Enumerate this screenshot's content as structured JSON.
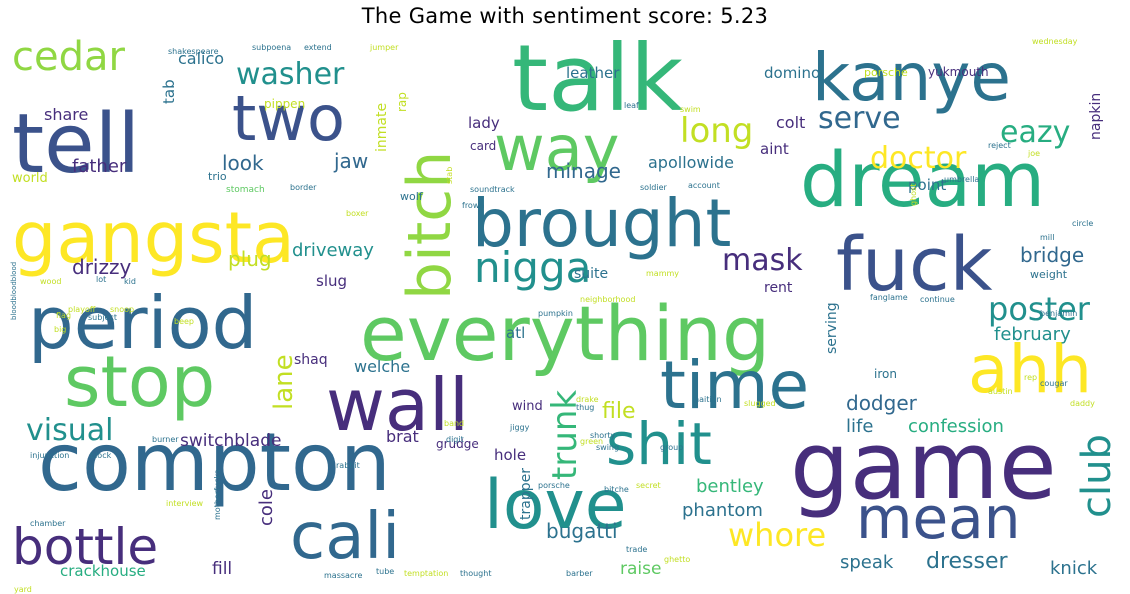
{
  "title": "The Game with sentiment score: 5.23",
  "colors": {
    "dark_purple": "#472e7c",
    "deep_purple": "#46327e",
    "indigo": "#3b528b",
    "blue": "#31688e",
    "teal_blue": "#2c728e",
    "teal": "#21908d",
    "sea_green": "#27ad81",
    "green": "#35b779",
    "light_green": "#5ec962",
    "lime": "#90d743",
    "yellow_green": "#c2df23",
    "yellow": "#fde725"
  },
  "words": [
    {
      "text": "talk",
      "color": "#35b779"
    },
    {
      "text": "kanye",
      "color": "#2c728e"
    },
    {
      "text": "tell",
      "color": "#3b528b"
    },
    {
      "text": "two",
      "color": "#3b528b"
    },
    {
      "text": "way",
      "color": "#5ec962"
    },
    {
      "text": "dream",
      "color": "#27ad81"
    },
    {
      "text": "gangsta",
      "color": "#fde725"
    },
    {
      "text": "bitch",
      "color": "#90d743"
    },
    {
      "text": "brought",
      "color": "#2c728e"
    },
    {
      "text": "fuck",
      "color": "#3b528b"
    },
    {
      "text": "period",
      "color": "#31688e"
    },
    {
      "text": "everything",
      "color": "#5ec962"
    },
    {
      "text": "stop",
      "color": "#5ec962"
    },
    {
      "text": "wall",
      "color": "#472e7c"
    },
    {
      "text": "time",
      "color": "#2c728e"
    },
    {
      "text": "ahh",
      "color": "#fde725"
    },
    {
      "text": "compton",
      "color": "#31688e"
    },
    {
      "text": "game",
      "color": "#472e7c"
    },
    {
      "text": "shit",
      "color": "#21908d"
    },
    {
      "text": "love",
      "color": "#21908d"
    },
    {
      "text": "mean",
      "color": "#3b528b"
    },
    {
      "text": "cali",
      "color": "#31688e"
    },
    {
      "text": "bottle",
      "color": "#472e7c"
    },
    {
      "text": "cedar",
      "color": "#90d743"
    },
    {
      "text": "washer",
      "color": "#21908d"
    },
    {
      "text": "long",
      "color": "#c2df23"
    },
    {
      "text": "serve",
      "color": "#31688e"
    },
    {
      "text": "eazy",
      "color": "#27ad81"
    },
    {
      "text": "doctor",
      "color": "#fde725"
    },
    {
      "text": "nigga",
      "color": "#21908d"
    },
    {
      "text": "mask",
      "color": "#472e7c"
    },
    {
      "text": "poster",
      "color": "#21908d"
    },
    {
      "text": "club",
      "color": "#21908d"
    },
    {
      "text": "whore",
      "color": "#fde725"
    },
    {
      "text": "visual",
      "color": "#21908d"
    },
    {
      "text": "lane",
      "color": "#c2df23"
    },
    {
      "text": "trunk",
      "color": "#35b779"
    },
    {
      "text": "minage",
      "color": "#31688e"
    },
    {
      "text": "father",
      "color": "#472e7c"
    },
    {
      "text": "look",
      "color": "#31688e"
    },
    {
      "text": "jaw",
      "color": "#31688e"
    },
    {
      "text": "drizzy",
      "color": "#472e7c"
    },
    {
      "text": "plug",
      "color": "#c2df23"
    },
    {
      "text": "driveway",
      "color": "#21908d"
    },
    {
      "text": "bridge",
      "color": "#31688e"
    },
    {
      "text": "february",
      "color": "#21908d"
    },
    {
      "text": "dodger",
      "color": "#31688e"
    },
    {
      "text": "life",
      "color": "#2c728e"
    },
    {
      "text": "confession",
      "color": "#27ad81"
    },
    {
      "text": "file",
      "color": "#c2df23"
    },
    {
      "text": "switchblade",
      "color": "#472e7c"
    },
    {
      "text": "bentley",
      "color": "#35b779"
    },
    {
      "text": "phantom",
      "color": "#2c728e"
    },
    {
      "text": "bugatti",
      "color": "#2c728e"
    },
    {
      "text": "speak",
      "color": "#2c728e"
    },
    {
      "text": "dresser",
      "color": "#2c728e"
    },
    {
      "text": "knick",
      "color": "#2c728e"
    },
    {
      "text": "cole",
      "color": "#472e7c"
    },
    {
      "text": "crackhouse",
      "color": "#27ad81"
    },
    {
      "text": "fill",
      "color": "#472e7c"
    },
    {
      "text": "raise",
      "color": "#5ec962"
    },
    {
      "text": "trapper",
      "color": "#2c728e"
    },
    {
      "text": "hole",
      "color": "#472e7c"
    },
    {
      "text": "brat",
      "color": "#472e7c"
    },
    {
      "text": "welche",
      "color": "#2c728e"
    },
    {
      "text": "shaq",
      "color": "#472e7c"
    },
    {
      "text": "atl",
      "color": "#2c728e"
    },
    {
      "text": "slug",
      "color": "#472e7c"
    },
    {
      "text": "suite",
      "color": "#2c728e"
    },
    {
      "text": "rent",
      "color": "#472e7c"
    },
    {
      "text": "serving",
      "color": "#2c728e"
    },
    {
      "text": "apollowide",
      "color": "#2c728e"
    },
    {
      "text": "point",
      "color": "#2c728e"
    },
    {
      "text": "colt",
      "color": "#472e7c"
    },
    {
      "text": "aint",
      "color": "#472e7c"
    },
    {
      "text": "domino",
      "color": "#2c728e"
    },
    {
      "text": "leather",
      "color": "#2c728e"
    },
    {
      "text": "lady",
      "color": "#472e7c"
    },
    {
      "text": "card",
      "color": "#472e7c"
    },
    {
      "text": "calico",
      "color": "#2c728e"
    },
    {
      "text": "share",
      "color": "#472e7c"
    },
    {
      "text": "tab",
      "color": "#2c728e"
    },
    {
      "text": "world",
      "color": "#c2df23"
    },
    {
      "text": "napkin",
      "color": "#472e7c"
    },
    {
      "text": "porsche",
      "color": "#c2df23"
    },
    {
      "text": "yukmouth",
      "color": "#472e7c"
    },
    {
      "text": "inmate",
      "color": "#c2df23"
    },
    {
      "text": "rap",
      "color": "#c2df23"
    },
    {
      "text": "pippen",
      "color": "#c2df23"
    },
    {
      "text": "iron",
      "color": "#2c728e"
    },
    {
      "text": "wind",
      "color": "#472e7c"
    },
    {
      "text": "grudge",
      "color": "#472e7c"
    },
    {
      "text": "weight",
      "color": "#2c728e"
    },
    {
      "text": "wolf",
      "color": "#2c728e"
    },
    {
      "text": "trio",
      "color": "#2c728e"
    },
    {
      "text": "stomach",
      "color": "#5ec962"
    },
    {
      "text": "subpoena",
      "color": "#2c728e"
    },
    {
      "text": "extend",
      "color": "#2c728e"
    },
    {
      "text": "jumper",
      "color": "#c2df23"
    },
    {
      "text": "wednesday",
      "color": "#c2df23"
    },
    {
      "text": "soundtrack",
      "color": "#2c728e"
    },
    {
      "text": "soldier",
      "color": "#2c728e"
    },
    {
      "text": "account",
      "color": "#2c728e"
    },
    {
      "text": "neighborhood",
      "color": "#c2df23"
    },
    {
      "text": "pumpkin",
      "color": "#2c728e"
    },
    {
      "text": "playoff",
      "color": "#c2df23"
    },
    {
      "text": "shakespeare",
      "color": "#2c728e"
    },
    {
      "text": "bloodbloodblood",
      "color": "#2c728e"
    },
    {
      "text": "injunction",
      "color": "#2c728e"
    },
    {
      "text": "block",
      "color": "#2c728e"
    },
    {
      "text": "chamber",
      "color": "#2c728e"
    },
    {
      "text": "interview",
      "color": "#c2df23"
    },
    {
      "text": "motherfucka",
      "color": "#2c728e"
    },
    {
      "text": "massacre",
      "color": "#2c728e"
    },
    {
      "text": "temptation",
      "color": "#c2df23"
    },
    {
      "text": "thought",
      "color": "#2c728e"
    },
    {
      "text": "barber",
      "color": "#2c728e"
    },
    {
      "text": "yard",
      "color": "#c2df23"
    },
    {
      "text": "porsche",
      "color": "#2c728e"
    },
    {
      "text": "bitche",
      "color": "#2c728e"
    },
    {
      "text": "secret",
      "color": "#c2df23"
    },
    {
      "text": "ghetto",
      "color": "#c2df23"
    },
    {
      "text": "trade",
      "color": "#2c728e"
    },
    {
      "text": "shorty",
      "color": "#2c728e"
    },
    {
      "text": "drake",
      "color": "#c2df23"
    },
    {
      "text": "thug",
      "color": "#2c728e"
    },
    {
      "text": "haitian",
      "color": "#2c728e"
    },
    {
      "text": "slugged",
      "color": "#c2df23"
    },
    {
      "text": "green",
      "color": "#c2df23"
    },
    {
      "text": "group",
      "color": "#2c728e"
    },
    {
      "text": "cougar",
      "color": "#2c728e"
    },
    {
      "text": "daddy",
      "color": "#c2df23"
    },
    {
      "text": "rep",
      "color": "#c2df23"
    },
    {
      "text": "austin",
      "color": "#c2df23"
    },
    {
      "text": "benjamin",
      "color": "#2c728e"
    },
    {
      "text": "continue",
      "color": "#2c728e"
    },
    {
      "text": "fanglame",
      "color": "#2c728e"
    },
    {
      "text": "snoop",
      "color": "#c2df23"
    },
    {
      "text": "subject",
      "color": "#2c728e"
    },
    {
      "text": "beep",
      "color": "#c2df23"
    },
    {
      "text": "mammy",
      "color": "#c2df23"
    },
    {
      "text": "digit",
      "color": "#2c728e"
    },
    {
      "text": "band",
      "color": "#c2df23"
    },
    {
      "text": "jiggy",
      "color": "#2c728e"
    },
    {
      "text": "rabbit",
      "color": "#2c728e"
    },
    {
      "text": "flag",
      "color": "#c2df23"
    },
    {
      "text": "big",
      "color": "#c2df23"
    },
    {
      "text": "burner",
      "color": "#2c728e"
    },
    {
      "text": "swing",
      "color": "#2c728e"
    },
    {
      "text": "frown",
      "color": "#2c728e"
    },
    {
      "text": "stab",
      "color": "#c2df23"
    },
    {
      "text": "umbrella",
      "color": "#2c728e"
    },
    {
      "text": "joe",
      "color": "#c2df23"
    },
    {
      "text": "reject",
      "color": "#2c728e"
    },
    {
      "text": "border",
      "color": "#2c728e"
    },
    {
      "text": "boxer",
      "color": "#c2df23"
    },
    {
      "text": "leaf",
      "color": "#2c728e"
    },
    {
      "text": "swim",
      "color": "#c2df23"
    },
    {
      "text": "circle",
      "color": "#2c728e"
    },
    {
      "text": "mill",
      "color": "#2c728e"
    },
    {
      "text": "ghost",
      "color": "#c2df23"
    },
    {
      "text": "wood",
      "color": "#c2df23"
    },
    {
      "text": "lot",
      "color": "#2c728e"
    },
    {
      "text": "kid",
      "color": "#2c728e"
    },
    {
      "text": "tube",
      "color": "#2c728e"
    }
  ]
}
